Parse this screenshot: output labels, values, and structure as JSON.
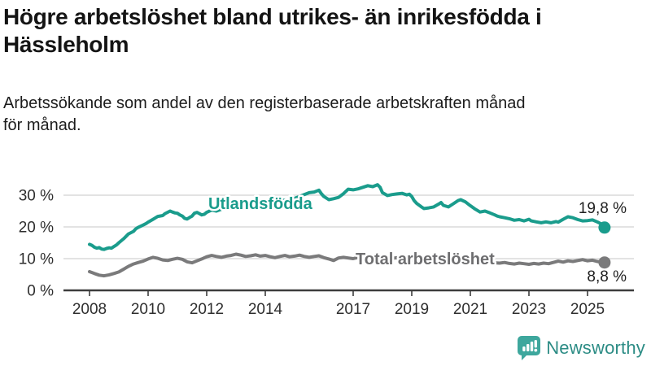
{
  "header": {
    "title_lines": [
      "Högre arbetslöshet bland utrikes- än inrikesfödda i",
      "Hässleholm"
    ],
    "subtitle_lines": [
      "Arbetssökande som andel av den registerbaserade arbetskraften månad",
      "för månad."
    ]
  },
  "footer": {
    "brand": "Newsworthy"
  },
  "colors": {
    "teal": "#1a9c8c",
    "gray": "#7a7a7b",
    "gray_label": "#6e6e70",
    "grid": "#dadada",
    "axis": "#3d3d3d",
    "logo_icon": "#3ea79d",
    "logo_text": "#2c8c85"
  },
  "chart_data": {
    "type": "line",
    "title": "Högre arbetslöshet bland utrikes- än inrikesfödda i Hässleholm",
    "subtitle": "Arbetssökande som andel av den registerbaserade arbetskraften månad för månad.",
    "xlabel": "",
    "ylabel": "",
    "xlim": [
      2007.1,
      2026.6
    ],
    "ylim": [
      0,
      35
    ],
    "grid": "horizontal",
    "legend_position": "inline-labels",
    "x_ticks": [
      2008,
      2010,
      2012,
      2014,
      2017,
      2019,
      2021,
      2023,
      2025
    ],
    "y_ticks": [
      0,
      10,
      20,
      30
    ],
    "y_tick_labels": [
      "0 %",
      "10 %",
      "20 %",
      "30 %"
    ],
    "series": [
      {
        "id": "utlandsfodda",
        "name": "Utlandsfödda",
        "end_label": "19,8 %",
        "end_value": 19.8,
        "color": "#1a9c8c",
        "points": [
          [
            2008.0,
            14.5
          ],
          [
            2008.08,
            14.2
          ],
          [
            2008.17,
            13.6
          ],
          [
            2008.25,
            13.3
          ],
          [
            2008.33,
            13.5
          ],
          [
            2008.42,
            13.0
          ],
          [
            2008.5,
            12.9
          ],
          [
            2008.58,
            13.2
          ],
          [
            2008.67,
            13.4
          ],
          [
            2008.75,
            13.3
          ],
          [
            2008.83,
            13.8
          ],
          [
            2008.92,
            14.3
          ],
          [
            2009.0,
            15.0
          ],
          [
            2009.17,
            16.3
          ],
          [
            2009.33,
            17.8
          ],
          [
            2009.5,
            18.6
          ],
          [
            2009.58,
            19.4
          ],
          [
            2009.67,
            19.9
          ],
          [
            2009.83,
            20.6
          ],
          [
            2009.92,
            21.0
          ],
          [
            2010.0,
            21.5
          ],
          [
            2010.17,
            22.4
          ],
          [
            2010.33,
            23.3
          ],
          [
            2010.5,
            23.6
          ],
          [
            2010.58,
            24.2
          ],
          [
            2010.75,
            25.0
          ],
          [
            2010.83,
            24.7
          ],
          [
            2010.92,
            24.4
          ],
          [
            2011.0,
            24.3
          ],
          [
            2011.08,
            23.8
          ],
          [
            2011.17,
            23.4
          ],
          [
            2011.25,
            22.7
          ],
          [
            2011.33,
            22.5
          ],
          [
            2011.42,
            23.0
          ],
          [
            2011.5,
            23.4
          ],
          [
            2011.58,
            24.3
          ],
          [
            2011.67,
            24.6
          ],
          [
            2011.75,
            24.2
          ],
          [
            2011.83,
            23.8
          ],
          [
            2011.92,
            24.0
          ],
          [
            2012.0,
            24.6
          ],
          [
            2012.17,
            25.3
          ],
          [
            2012.33,
            25.0
          ],
          [
            2012.5,
            25.6
          ],
          [
            2012.67,
            26.0
          ],
          [
            2012.83,
            26.4
          ],
          [
            2013.0,
            27.2
          ],
          [
            2013.17,
            27.8
          ],
          [
            2013.33,
            27.5
          ],
          [
            2013.5,
            27.9
          ],
          [
            2013.67,
            28.3
          ],
          [
            2013.83,
            28.0
          ],
          [
            2014.0,
            28.4
          ],
          [
            2014.17,
            28.0
          ],
          [
            2014.33,
            27.6
          ],
          [
            2014.5,
            28.1
          ],
          [
            2014.67,
            28.5
          ],
          [
            2014.83,
            28.2
          ],
          [
            2015.0,
            29.0
          ],
          [
            2015.17,
            29.6
          ],
          [
            2015.33,
            30.2
          ],
          [
            2015.5,
            30.8
          ],
          [
            2015.67,
            31.0
          ],
          [
            2015.83,
            31.6
          ],
          [
            2015.92,
            30.4
          ],
          [
            2016.0,
            29.6
          ],
          [
            2016.17,
            28.6
          ],
          [
            2016.33,
            28.9
          ],
          [
            2016.5,
            29.3
          ],
          [
            2016.67,
            30.5
          ],
          [
            2016.83,
            31.9
          ],
          [
            2017.0,
            31.7
          ],
          [
            2017.17,
            32.0
          ],
          [
            2017.33,
            32.5
          ],
          [
            2017.5,
            33.0
          ],
          [
            2017.67,
            32.7
          ],
          [
            2017.83,
            33.3
          ],
          [
            2017.92,
            32.5
          ],
          [
            2018.0,
            30.8
          ],
          [
            2018.17,
            29.9
          ],
          [
            2018.33,
            30.2
          ],
          [
            2018.5,
            30.4
          ],
          [
            2018.67,
            30.6
          ],
          [
            2018.83,
            30.1
          ],
          [
            2018.92,
            30.3
          ],
          [
            2019.0,
            29.6
          ],
          [
            2019.08,
            28.3
          ],
          [
            2019.17,
            27.4
          ],
          [
            2019.33,
            26.3
          ],
          [
            2019.42,
            25.8
          ],
          [
            2019.58,
            26.0
          ],
          [
            2019.75,
            26.3
          ],
          [
            2019.92,
            27.2
          ],
          [
            2020.0,
            27.7
          ],
          [
            2020.08,
            26.8
          ],
          [
            2020.25,
            26.3
          ],
          [
            2020.42,
            27.3
          ],
          [
            2020.58,
            28.3
          ],
          [
            2020.67,
            28.6
          ],
          [
            2020.83,
            27.9
          ],
          [
            2021.0,
            26.7
          ],
          [
            2021.17,
            25.6
          ],
          [
            2021.33,
            24.7
          ],
          [
            2021.5,
            25.0
          ],
          [
            2021.67,
            24.4
          ],
          [
            2021.83,
            23.8
          ],
          [
            2021.92,
            23.4
          ],
          [
            2022.0,
            23.2
          ],
          [
            2022.17,
            22.9
          ],
          [
            2022.33,
            22.6
          ],
          [
            2022.5,
            22.1
          ],
          [
            2022.67,
            22.3
          ],
          [
            2022.83,
            21.9
          ],
          [
            2023.0,
            22.4
          ],
          [
            2023.08,
            21.9
          ],
          [
            2023.25,
            21.6
          ],
          [
            2023.42,
            21.3
          ],
          [
            2023.58,
            21.6
          ],
          [
            2023.75,
            21.3
          ],
          [
            2023.92,
            21.7
          ],
          [
            2024.0,
            21.5
          ],
          [
            2024.17,
            22.4
          ],
          [
            2024.33,
            23.2
          ],
          [
            2024.5,
            22.9
          ],
          [
            2024.67,
            22.3
          ],
          [
            2024.83,
            21.9
          ],
          [
            2025.0,
            22.0
          ],
          [
            2025.17,
            22.2
          ],
          [
            2025.33,
            21.6
          ],
          [
            2025.5,
            20.8
          ],
          [
            2025.58,
            19.8
          ]
        ]
      },
      {
        "id": "total-arbetsloshet",
        "name": "Total arbetslöshet",
        "end_label": "8,8 %",
        "end_value": 8.8,
        "color": "#7a7a7b",
        "points": [
          [
            2008.0,
            5.9
          ],
          [
            2008.17,
            5.3
          ],
          [
            2008.33,
            4.8
          ],
          [
            2008.5,
            4.6
          ],
          [
            2008.67,
            4.9
          ],
          [
            2008.83,
            5.3
          ],
          [
            2009.0,
            5.8
          ],
          [
            2009.17,
            6.7
          ],
          [
            2009.33,
            7.6
          ],
          [
            2009.5,
            8.3
          ],
          [
            2009.67,
            8.8
          ],
          [
            2009.83,
            9.2
          ],
          [
            2010.0,
            9.9
          ],
          [
            2010.17,
            10.4
          ],
          [
            2010.33,
            10.1
          ],
          [
            2010.5,
            9.6
          ],
          [
            2010.67,
            9.4
          ],
          [
            2010.83,
            9.8
          ],
          [
            2011.0,
            10.1
          ],
          [
            2011.17,
            9.8
          ],
          [
            2011.33,
            9.0
          ],
          [
            2011.5,
            8.7
          ],
          [
            2011.67,
            9.3
          ],
          [
            2011.83,
            9.9
          ],
          [
            2012.0,
            10.6
          ],
          [
            2012.17,
            11.0
          ],
          [
            2012.33,
            10.7
          ],
          [
            2012.5,
            10.4
          ],
          [
            2012.67,
            10.8
          ],
          [
            2012.83,
            11.0
          ],
          [
            2013.0,
            11.4
          ],
          [
            2013.17,
            11.1
          ],
          [
            2013.33,
            10.7
          ],
          [
            2013.5,
            10.9
          ],
          [
            2013.67,
            11.2
          ],
          [
            2013.83,
            10.8
          ],
          [
            2014.0,
            11.0
          ],
          [
            2014.17,
            10.6
          ],
          [
            2014.33,
            10.3
          ],
          [
            2014.5,
            10.7
          ],
          [
            2014.67,
            11.0
          ],
          [
            2014.83,
            10.6
          ],
          [
            2015.0,
            10.8
          ],
          [
            2015.17,
            11.1
          ],
          [
            2015.33,
            10.7
          ],
          [
            2015.5,
            10.4
          ],
          [
            2015.67,
            10.7
          ],
          [
            2015.83,
            10.9
          ],
          [
            2016.0,
            10.3
          ],
          [
            2016.17,
            9.9
          ],
          [
            2016.33,
            9.4
          ],
          [
            2016.5,
            10.2
          ],
          [
            2016.67,
            10.4
          ],
          [
            2016.83,
            10.2
          ],
          [
            2017.0,
            10.0
          ],
          [
            2017.17,
            10.4
          ],
          [
            2017.33,
            10.7
          ],
          [
            2017.5,
            10.5
          ],
          [
            2017.67,
            10.8
          ],
          [
            2017.83,
            10.4
          ],
          [
            2018.0,
            10.1
          ],
          [
            2018.17,
            9.8
          ],
          [
            2018.33,
            10.1
          ],
          [
            2018.5,
            10.3
          ],
          [
            2018.67,
            10.0
          ],
          [
            2018.83,
            9.8
          ],
          [
            2019.0,
            9.6
          ],
          [
            2019.17,
            9.3
          ],
          [
            2019.33,
            9.1
          ],
          [
            2019.5,
            9.3
          ],
          [
            2019.67,
            9.5
          ],
          [
            2019.83,
            9.7
          ],
          [
            2020.0,
            9.9
          ],
          [
            2020.17,
            10.2
          ],
          [
            2020.33,
            10.5
          ],
          [
            2020.5,
            10.7
          ],
          [
            2020.67,
            10.4
          ],
          [
            2020.83,
            10.1
          ],
          [
            2021.0,
            9.9
          ],
          [
            2021.17,
            9.6
          ],
          [
            2021.33,
            9.3
          ],
          [
            2021.5,
            9.1
          ],
          [
            2021.67,
            8.9
          ],
          [
            2021.83,
            8.7
          ],
          [
            2022.0,
            8.6
          ],
          [
            2022.17,
            8.8
          ],
          [
            2022.33,
            8.5
          ],
          [
            2022.5,
            8.3
          ],
          [
            2022.67,
            8.6
          ],
          [
            2022.83,
            8.4
          ],
          [
            2023.0,
            8.2
          ],
          [
            2023.17,
            8.5
          ],
          [
            2023.33,
            8.3
          ],
          [
            2023.5,
            8.6
          ],
          [
            2023.67,
            8.4
          ],
          [
            2023.83,
            8.8
          ],
          [
            2024.0,
            9.2
          ],
          [
            2024.17,
            8.9
          ],
          [
            2024.33,
            9.3
          ],
          [
            2024.5,
            9.1
          ],
          [
            2024.67,
            9.4
          ],
          [
            2024.83,
            9.7
          ],
          [
            2025.0,
            9.3
          ],
          [
            2025.17,
            9.5
          ],
          [
            2025.33,
            9.1
          ],
          [
            2025.5,
            8.9
          ],
          [
            2025.58,
            8.8
          ]
        ]
      }
    ]
  }
}
